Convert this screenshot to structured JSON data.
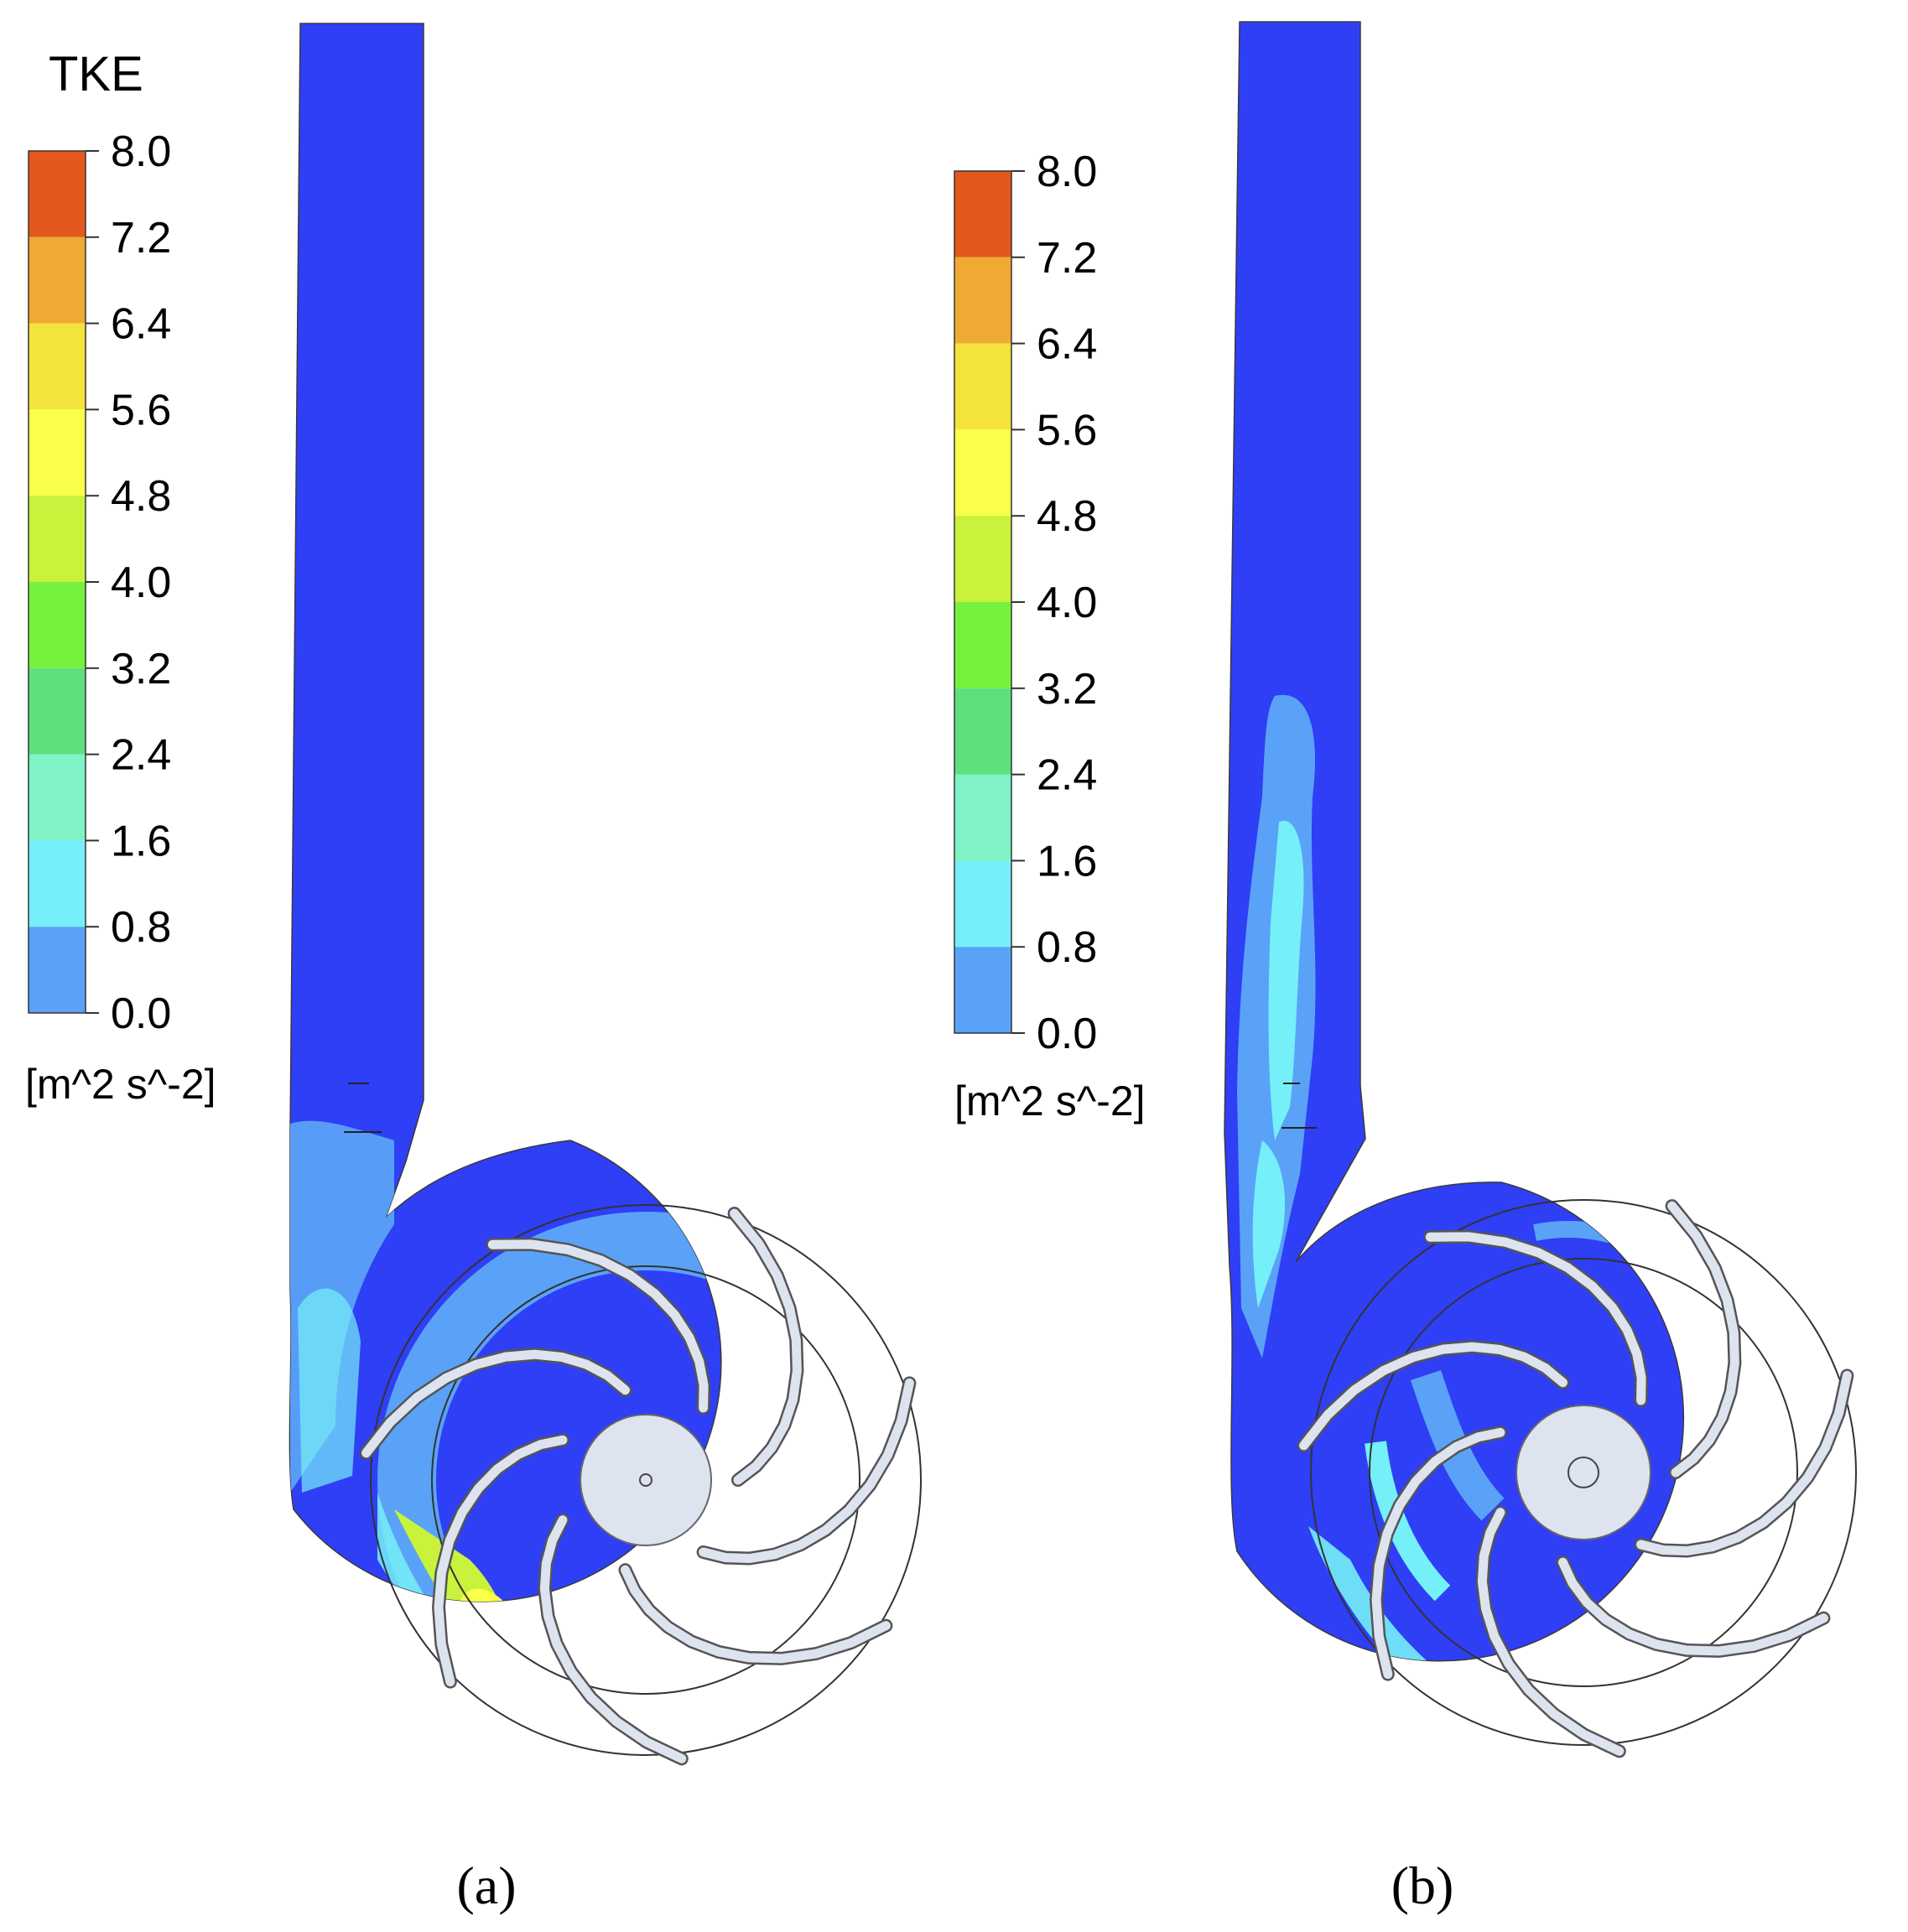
{
  "legend": {
    "title": "TKE",
    "unit": "[m^2 s^-2]",
    "ticks": [
      "8.0",
      "7.2",
      "6.4",
      "5.6",
      "4.8",
      "4.0",
      "3.2",
      "2.4",
      "1.6",
      "0.8",
      "0.0"
    ],
    "band_colors": [
      "#e4581d",
      "#eeaa33",
      "#f4e33a",
      "#faff4a",
      "#c8f23c",
      "#77f23c",
      "#5de07d",
      "#7ff3c5",
      "#76f0f8",
      "#5aa2f7",
      "#2f3ff5"
    ]
  },
  "panels": [
    {
      "caption": "(a)"
    },
    {
      "caption": "(b)"
    }
  ]
}
